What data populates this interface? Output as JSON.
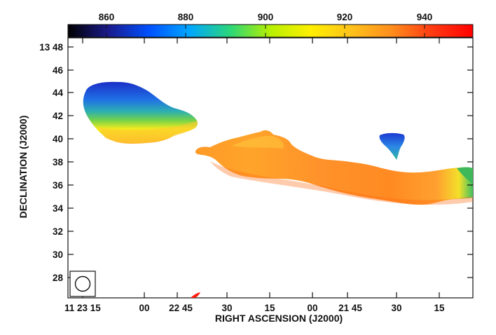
{
  "colorbar": {
    "ticks": [
      "860",
      "880",
      "900",
      "920",
      "940"
    ],
    "colors": [
      "#000000",
      "#1a1a8c",
      "#0050ff",
      "#00a6ff",
      "#2ad67a",
      "#b6f000",
      "#ffef00",
      "#ffc21a",
      "#ff8d1c",
      "#ff3a12",
      "#ff0000"
    ]
  },
  "axes": {
    "xlabel": "RIGHT ASCENSION (J2000)",
    "ylabel": "DECLINATION (J2000)",
    "xticks": [
      "11 23 15",
      "00",
      "22 45",
      "30",
      "15",
      "00",
      "21 45",
      "30",
      "15"
    ],
    "yticks": [
      "13 48",
      "46",
      "44",
      "42",
      "40",
      "38",
      "36",
      "34",
      "32",
      "30",
      "28"
    ]
  },
  "map": {
    "blob_colors": {
      "deep_blue": "#1a3ad2",
      "blue": "#1f6fe6",
      "teal": "#2db0b0",
      "green": "#74d24a",
      "yellow": "#f3ec1e",
      "orange_light": "#ffb02a",
      "orange": "#ff9322",
      "orange_dark": "#ff7a1a",
      "red": "#ff2a10"
    }
  },
  "beam": {
    "icon": "beam-ellipse-icon"
  }
}
